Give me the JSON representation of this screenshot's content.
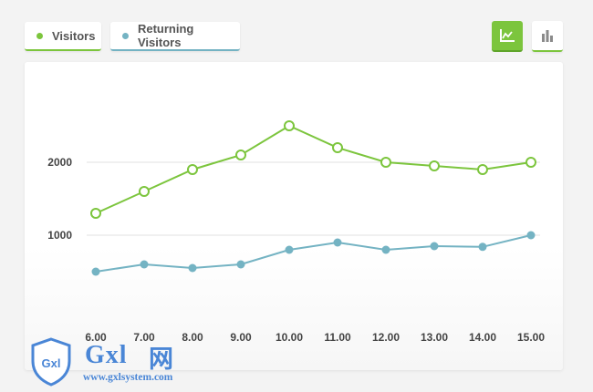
{
  "legend": {
    "visitors_label": "Visitors",
    "returning_label": "Returning Visitors"
  },
  "toolbar": {
    "line_icon": "line-chart-icon",
    "bar_icon": "bar-chart-icon"
  },
  "colors": {
    "visitors": "#7cc53d",
    "returning": "#74b3c3",
    "gridline": "#e2e2e2",
    "tick_text": "#444444"
  },
  "chart_data": {
    "type": "line",
    "categories": [
      "6.00",
      "7.00",
      "8.00",
      "9.00",
      "10.00",
      "11.00",
      "12.00",
      "13.00",
      "14.00",
      "15.00"
    ],
    "yticks": [
      "1000",
      "2000"
    ],
    "ylim": [
      0,
      3000
    ],
    "grid": true,
    "series": [
      {
        "name": "Visitors",
        "values": [
          1300,
          1600,
          1900,
          2100,
          2500,
          2200,
          2000,
          1950,
          1900,
          2000
        ]
      },
      {
        "name": "Returning Visitors",
        "values": [
          500,
          600,
          550,
          600,
          800,
          900,
          800,
          850,
          840,
          1000
        ]
      }
    ]
  },
  "watermark": {
    "brand_text": "Gxl",
    "brand_glyph": "网",
    "badge_text": "Gxl",
    "url": "www.gxlsystem.com"
  }
}
